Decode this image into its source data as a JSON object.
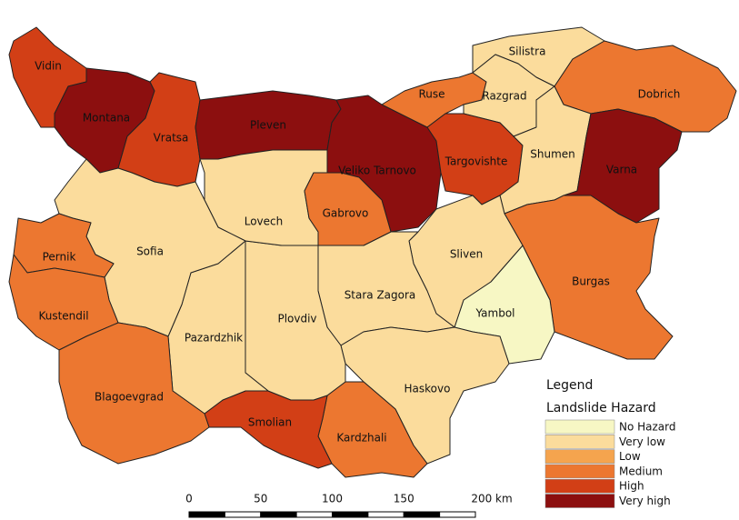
{
  "legend": {
    "title": "Legend",
    "subtitle": "Landslide Hazard",
    "items": [
      {
        "label": "No Hazard",
        "color": "#f7f7c4"
      },
      {
        "label": "Very low",
        "color": "#fbdc9c"
      },
      {
        "label": "Low",
        "color": "#f5a44e"
      },
      {
        "label": "Medium",
        "color": "#ec7730"
      },
      {
        "label": "High",
        "color": "#d23f16"
      },
      {
        "label": "Very high",
        "color": "#8c0f0f"
      }
    ]
  },
  "regions": [
    {
      "name": "Vidin",
      "class": 4
    },
    {
      "name": "Montana",
      "class": 5
    },
    {
      "name": "Vratsa",
      "class": 4
    },
    {
      "name": "Pleven",
      "class": 5
    },
    {
      "name": "Veliko Tarnovo",
      "class": 5
    },
    {
      "name": "Ruse",
      "class": 3
    },
    {
      "name": "Silistra",
      "class": 1
    },
    {
      "name": "Razgrad",
      "class": 1
    },
    {
      "name": "Dobrich",
      "class": 3
    },
    {
      "name": "Targovishte",
      "class": 4
    },
    {
      "name": "Shumen",
      "class": 1
    },
    {
      "name": "Varna",
      "class": 5
    },
    {
      "name": "Burgas",
      "class": 3
    },
    {
      "name": "Yambol",
      "class": 0
    },
    {
      "name": "Sliven",
      "class": 1
    },
    {
      "name": "Stara Zagora",
      "class": 1
    },
    {
      "name": "Haskovo",
      "class": 1
    },
    {
      "name": "Kardzhali",
      "class": 3
    },
    {
      "name": "Smolian",
      "class": 4
    },
    {
      "name": "Plovdiv",
      "class": 1
    },
    {
      "name": "Pazardzhik",
      "class": 1
    },
    {
      "name": "Lovech",
      "class": 1
    },
    {
      "name": "Gabrovo",
      "class": 3
    },
    {
      "name": "Sofia",
      "class": 1
    },
    {
      "name": "Pernik",
      "class": 3
    },
    {
      "name": "Kustendil",
      "class": 3
    },
    {
      "name": "Blagoevgrad",
      "class": 3
    }
  ],
  "scale_bar": {
    "labels": [
      "0",
      "50",
      "100",
      "150",
      "200 km"
    ]
  }
}
